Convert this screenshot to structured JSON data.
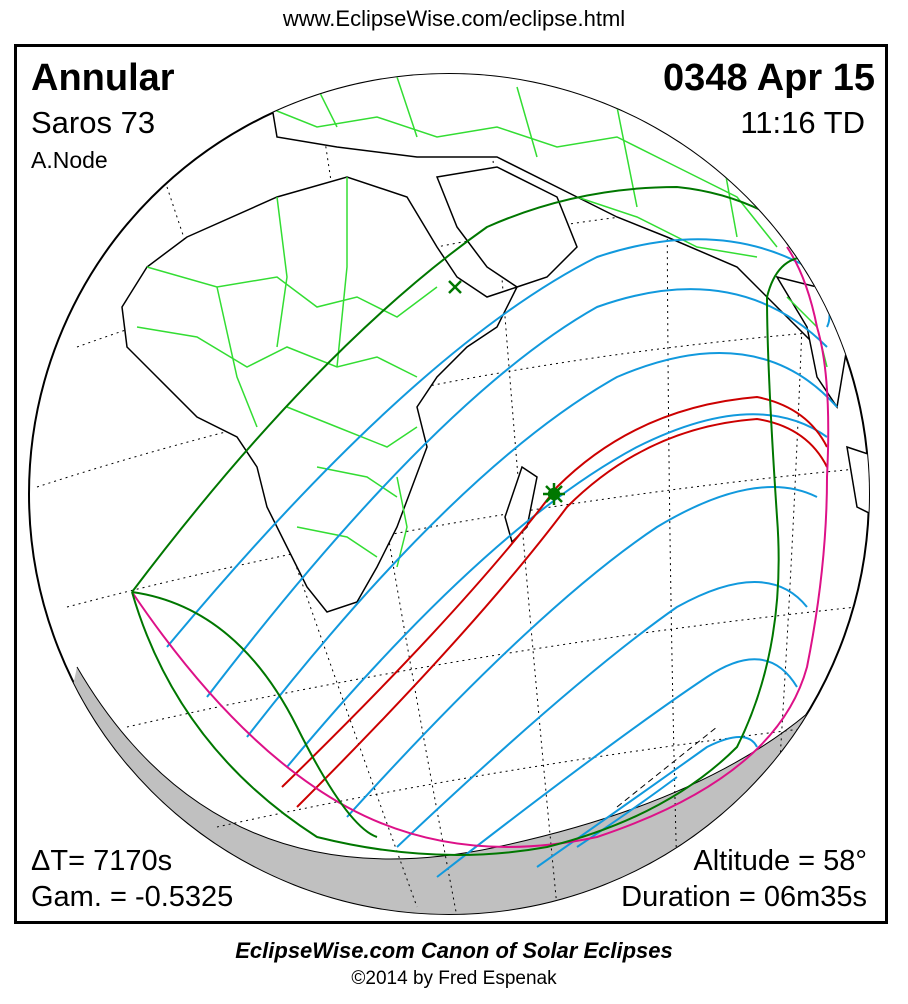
{
  "header": {
    "url": "www.EclipseWise.com/eclipse.html"
  },
  "eclipse": {
    "type": "Annular",
    "saros": "Saros  73",
    "node": "A.Node",
    "date": "0348 Apr 15",
    "time": "11:16 TD",
    "delta_t": "ΔT=   7170s",
    "gamma": "Gam. = -0.5325",
    "altitude": "Altitude = 58°",
    "duration": "Duration = 06m35s"
  },
  "footer": {
    "canon": "EclipseWise.com Canon of Solar Eclipses",
    "copyright": "©2014 by Fred Espenak"
  },
  "colors": {
    "coastline": "#000000",
    "borders": "#33dd33",
    "penumbra_limits": "#007700",
    "central_path": "#cc0000",
    "partial_curves": "#1199dd",
    "rise_set_curve": "#dd1188",
    "night_shade": "#c0c0c0",
    "grid": "#000000"
  },
  "markers": [
    {
      "name": "greatest-eclipse-marker",
      "icon": "asterisk-icon"
    },
    {
      "name": "subsolar-point-marker",
      "icon": "x-icon"
    }
  ]
}
